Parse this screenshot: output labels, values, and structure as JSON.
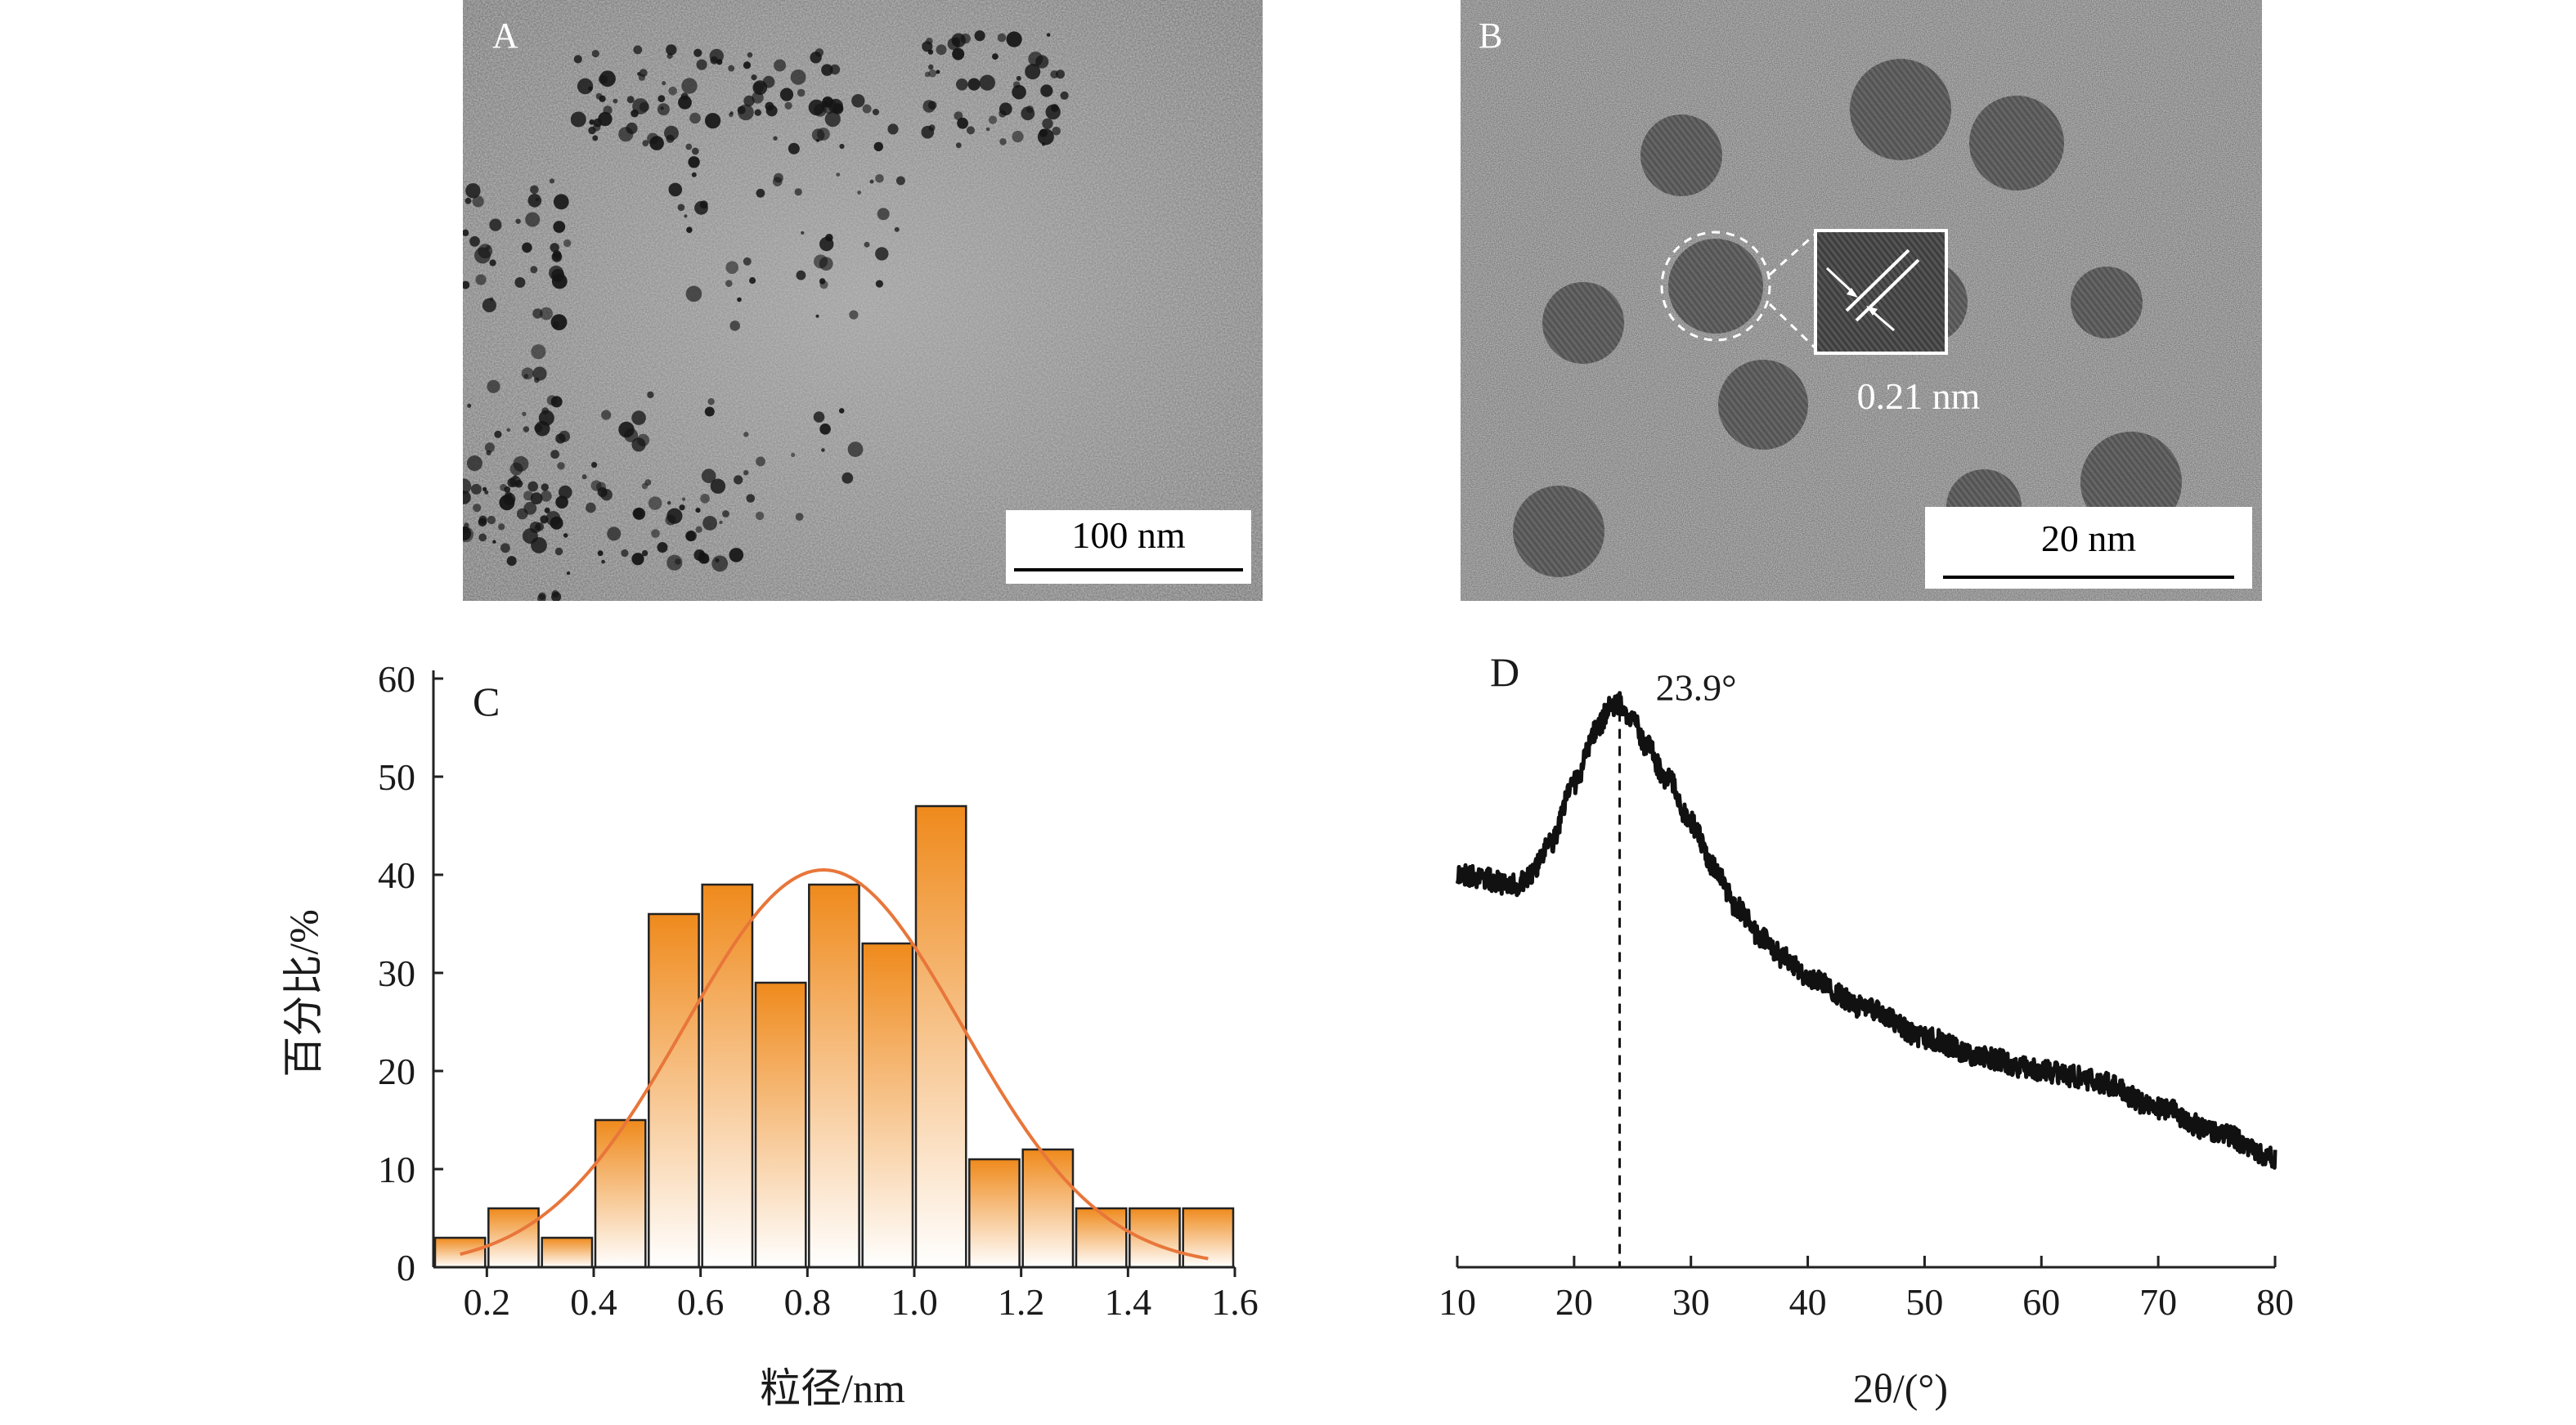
{
  "panels": {
    "a": {
      "letter": "A",
      "scale_bar": "100 nm"
    },
    "b": {
      "letter": "B",
      "scale_bar": "20 nm",
      "lattice_label": "0.21 nm"
    },
    "c": {
      "letter": "C"
    },
    "d": {
      "letter": "D",
      "peak_label": "23.9°"
    }
  },
  "chart_data": [
    {
      "panel": "C",
      "type": "bar",
      "title": "",
      "xlabel": "粒径/nm",
      "ylabel": "百分比/%",
      "x_ticks": [
        "0.2",
        "0.4",
        "0.6",
        "0.8",
        "1.0",
        "1.2",
        "1.4",
        "1.6"
      ],
      "y_ticks": [
        "0",
        "10",
        "20",
        "30",
        "40",
        "50",
        "60"
      ],
      "xlim": [
        0.1,
        1.6
      ],
      "ylim": [
        0,
        60
      ],
      "bin_width": 0.1,
      "bin_centers": [
        0.15,
        0.25,
        0.35,
        0.45,
        0.55,
        0.65,
        0.75,
        0.85,
        0.95,
        1.05,
        1.15,
        1.25,
        1.35,
        1.45,
        1.55
      ],
      "values": [
        3,
        6,
        3,
        15,
        36,
        39,
        29,
        39,
        33,
        47,
        11,
        12,
        6,
        6,
        6
      ],
      "fit_curve": {
        "type": "gaussian",
        "peak": 40.5,
        "center": 0.83,
        "sigma": 0.26,
        "x_range": [
          0.15,
          1.55
        ]
      },
      "colors": {
        "bar_top": "#ef8a1c",
        "bar_bottom": "#ffffff",
        "fit": "#e8763a"
      }
    },
    {
      "panel": "D",
      "type": "line",
      "title": "",
      "xlabel": "2θ/(°)",
      "ylabel": "",
      "x_ticks": [
        "10",
        "20",
        "30",
        "40",
        "50",
        "60",
        "70",
        "80"
      ],
      "xlim": [
        10,
        80
      ],
      "y_axis_shown": false,
      "x": [
        10,
        12,
        14,
        15,
        16,
        18,
        20,
        22,
        23,
        23.9,
        25,
        26,
        28,
        30,
        32,
        34,
        36,
        38,
        40,
        45,
        50,
        55,
        60,
        63,
        65,
        70,
        75,
        80
      ],
      "y": [
        35,
        34.5,
        34,
        33.8,
        34.5,
        38,
        44,
        49.5,
        51.5,
        52,
        50.5,
        48,
        44.5,
        40,
        35.5,
        31.5,
        28.5,
        26.5,
        24.5,
        21.5,
        18.5,
        16.5,
        15.2,
        14.6,
        14,
        11.5,
        9,
        6.5
      ],
      "peak_x": 23.9,
      "colors": {
        "line": "#111111"
      }
    }
  ]
}
